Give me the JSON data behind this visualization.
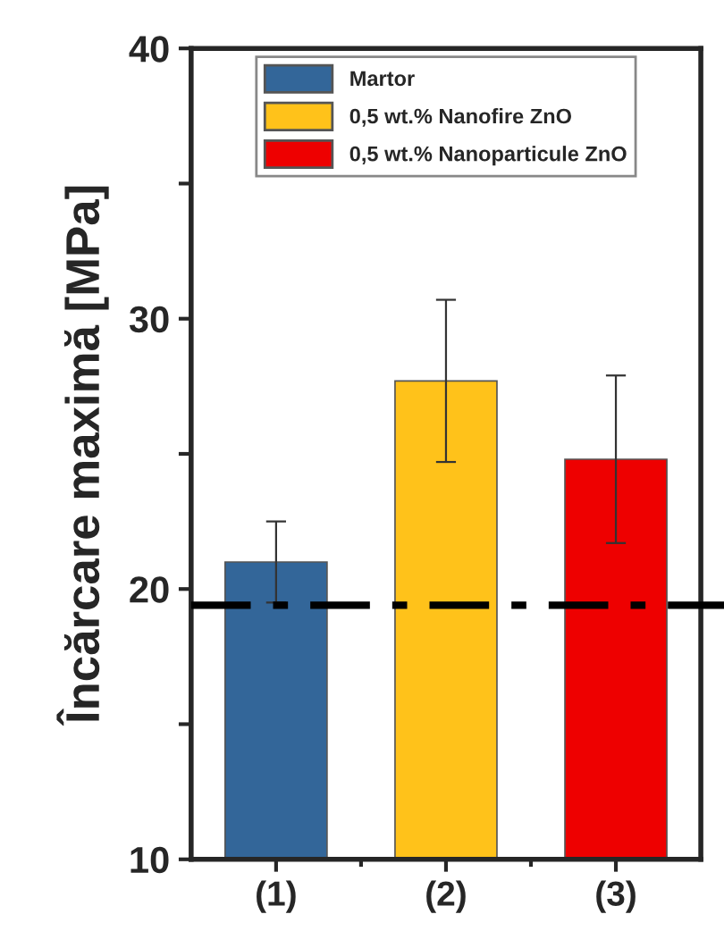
{
  "chart_data": {
    "type": "bar",
    "ylabel": "Încărcare maximă [MPa]",
    "categories": [
      "(1)",
      "(2)",
      "(3)"
    ],
    "stacked": true,
    "series": [
      {
        "name": "Martor",
        "color": "#336699",
        "values": [
          21.0,
          null,
          null
        ],
        "errors": [
          1.5,
          null,
          null
        ]
      },
      {
        "name": "0,5 wt.% Nanofire ZnO",
        "color": "#ffc21a",
        "values": [
          null,
          27.7,
          null
        ],
        "errors": [
          null,
          3.0,
          null
        ]
      },
      {
        "name": "0,5 wt.% Nanoparticule ZnO",
        "color": "#ee0000",
        "values": [
          null,
          null,
          24.8
        ],
        "errors": [
          null,
          null,
          3.1
        ]
      }
    ],
    "ylim": [
      10,
      40
    ],
    "yticks": [
      10,
      {
        "value": 15,
        "label": null
      },
      20,
      {
        "value": 25,
        "label": null
      },
      30,
      {
        "value": 35,
        "label": null
      },
      40
    ],
    "ref_lines": [
      {
        "axis": "y",
        "value": 19.4,
        "color": "#000000",
        "line_style": "dashdot"
      }
    ],
    "legend": "top",
    "grid": false
  }
}
